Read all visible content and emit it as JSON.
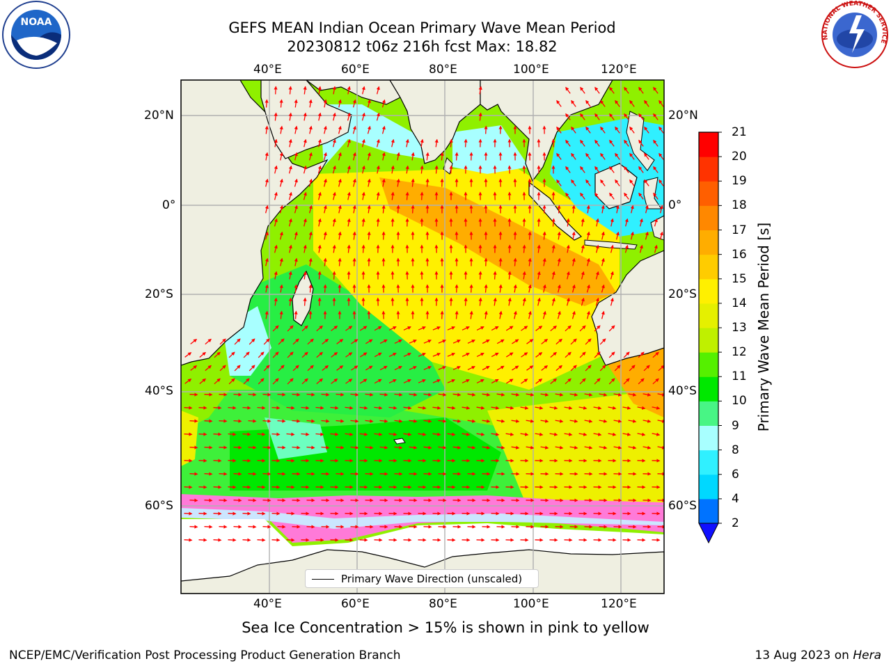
{
  "title": {
    "line1": "GEFS MEAN Indian Ocean Primary Wave Mean Period",
    "line2": "20230812 t06z 216h fcst   Max: 18.82"
  },
  "map": {
    "lon_ticks": [
      "40°E",
      "60°E",
      "80°E",
      "100°E",
      "120°E"
    ],
    "lat_ticks": [
      "20°N",
      "0°",
      "20°S",
      "40°S",
      "60°S"
    ],
    "land_color": "#efefe1",
    "grid": true,
    "arrow_color": "#ff0000"
  },
  "colorbar": {
    "label": "Primary Wave Mean Period [s]",
    "levels": [
      "2",
      "4",
      "6",
      "8",
      "9",
      "10",
      "11",
      "12",
      "13",
      "14",
      "15",
      "16",
      "17",
      "18",
      "19",
      "20",
      "21"
    ],
    "colors": [
      "#0073ff",
      "#00d8ff",
      "#30f0ff",
      "#a8ffff",
      "#48f585",
      "#00e800",
      "#55f000",
      "#bff000",
      "#e5f000",
      "#fff000",
      "#ffcc00",
      "#ffad00",
      "#ff8800",
      "#ff5f00",
      "#ff3300",
      "#ff0000"
    ],
    "extend_color": "#1010ff"
  },
  "legend": {
    "label": "Primary Wave Direction (unscaled)"
  },
  "footnote": "Sea Ice Concentration > 15% is shown in pink to yellow",
  "credit_left": "NCEP/EMC/Verification Post Processing Product Generation Branch",
  "credit_right_date": "13 Aug 2023 on ",
  "credit_right_host": "Hera",
  "logos": {
    "noaa_text": "NOAA",
    "nws_text": "NATIONAL WEATHER SERVICE"
  }
}
